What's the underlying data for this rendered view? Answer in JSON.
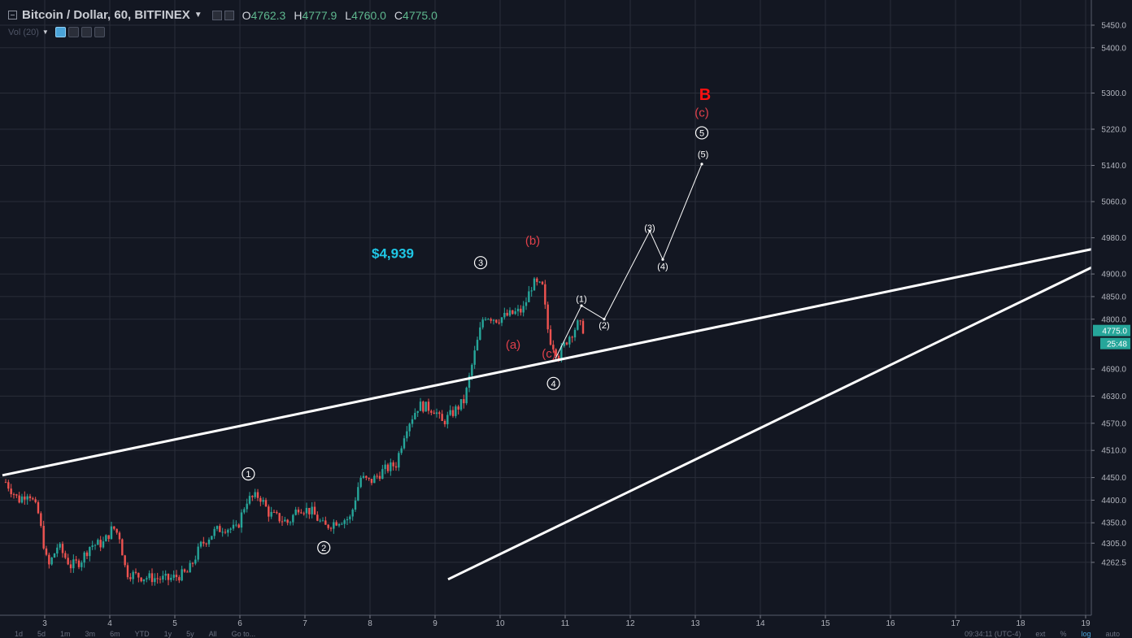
{
  "header": {
    "symbol": "Bitcoin / Dollar, 60, BITFINEX",
    "open_label": "O",
    "open_value": "4762.3",
    "high_label": "H",
    "high_value": "4777.9",
    "low_label": "L",
    "low_value": "4760.0",
    "close_label": "C",
    "close_value": "4775.0",
    "vol_label": "Vol (20)"
  },
  "price_axis": {
    "ticks": [
      5450.0,
      5400.0,
      5300.0,
      5220.0,
      5140.0,
      5060.0,
      4980.0,
      4900.0,
      4850.0,
      4800.0,
      4690.0,
      4630.0,
      4570.0,
      4510.0,
      4450.0,
      4400.0,
      4350.0,
      4305.0,
      4262.5
    ],
    "tick_labels": [
      "5450.0",
      "5400.0",
      "5300.0",
      "5220.0",
      "5140.0",
      "5060.0",
      "4980.0",
      "4900.0",
      "4850.0",
      "4800.0",
      "4690.0",
      "4630.0",
      "4570.0",
      "4510.0",
      "4450.0",
      "4400.0",
      "4350.0",
      "4305.0",
      "4262.5"
    ],
    "last_price": "4775.0",
    "countdown": "25:48"
  },
  "time_axis": {
    "ticks": [
      3,
      4,
      5,
      6,
      7,
      8,
      9,
      10,
      11,
      12,
      13,
      14,
      15,
      16,
      17,
      18,
      19
    ],
    "tick_labels": [
      "3",
      "4",
      "5",
      "6",
      "7",
      "8",
      "9",
      "10",
      "11",
      "12",
      "13",
      "14",
      "15",
      "16",
      "17",
      "18",
      "19"
    ]
  },
  "bottom_toolbar": {
    "ranges": [
      "1d",
      "5d",
      "1m",
      "3m",
      "6m",
      "YTD",
      "1y",
      "5y",
      "All",
      "Go to..."
    ],
    "clock": "09:34:11 (UTC-4)",
    "right_items": [
      "ext",
      "%",
      "log",
      "auto"
    ]
  },
  "chart_data": {
    "type": "candlestick",
    "x_unit": "day of month",
    "y_unit": "USD",
    "ylim": [
      4230,
      5470
    ],
    "xlim": [
      2.35,
      19.1
    ],
    "price_path": [
      [
        2.4,
        4440
      ],
      [
        2.6,
        4400
      ],
      [
        2.75,
        4420
      ],
      [
        2.9,
        4370
      ],
      [
        3.05,
        4250
      ],
      [
        3.2,
        4300
      ],
      [
        3.4,
        4255
      ],
      [
        3.55,
        4265
      ],
      [
        3.7,
        4300
      ],
      [
        3.9,
        4305
      ],
      [
        4.05,
        4340
      ],
      [
        4.15,
        4320
      ],
      [
        4.25,
        4240
      ],
      [
        4.5,
        4230
      ],
      [
        4.9,
        4225
      ],
      [
        5.2,
        4240
      ],
      [
        5.4,
        4300
      ],
      [
        5.6,
        4330
      ],
      [
        5.75,
        4340
      ],
      [
        5.95,
        4335
      ],
      [
        6.1,
        4400
      ],
      [
        6.3,
        4410
      ],
      [
        6.45,
        4370
      ],
      [
        6.6,
        4360
      ],
      [
        6.75,
        4350
      ],
      [
        6.9,
        4385
      ],
      [
        7.1,
        4375
      ],
      [
        7.3,
        4340
      ],
      [
        7.5,
        4355
      ],
      [
        7.7,
        4360
      ],
      [
        7.85,
        4450
      ],
      [
        8.0,
        4440
      ],
      [
        8.2,
        4465
      ],
      [
        8.4,
        4480
      ],
      [
        8.55,
        4560
      ],
      [
        8.75,
        4610
      ],
      [
        9.0,
        4600
      ],
      [
        9.1,
        4570
      ],
      [
        9.25,
        4590
      ],
      [
        9.45,
        4620
      ],
      [
        9.6,
        4720
      ],
      [
        9.75,
        4810
      ],
      [
        9.95,
        4800
      ],
      [
        10.15,
        4810
      ],
      [
        10.35,
        4820
      ],
      [
        10.5,
        4880
      ],
      [
        10.65,
        4870
      ],
      [
        10.75,
        4760
      ],
      [
        10.9,
        4720
      ],
      [
        11.05,
        4760
      ],
      [
        11.2,
        4790
      ],
      [
        11.3,
        4775
      ]
    ],
    "wave_labels": [
      {
        "text": "1",
        "x": 6.13,
        "y": 4458,
        "circled": true,
        "color": "#ffffff"
      },
      {
        "text": "2",
        "x": 7.29,
        "y": 4295,
        "circled": true,
        "color": "#ffffff"
      },
      {
        "text": "3",
        "x": 9.7,
        "y": 4925,
        "circled": true,
        "color": "#ffffff"
      },
      {
        "text": "4",
        "x": 10.82,
        "y": 4658,
        "circled": true,
        "color": "#ffffff"
      },
      {
        "text": "5",
        "x": 13.1,
        "y": 5212,
        "circled": true,
        "color": "#ffffff"
      },
      {
        "text": "(a)",
        "x": 10.2,
        "y": 4735,
        "circled": false,
        "color": "#e0404a"
      },
      {
        "text": "(b)",
        "x": 10.5,
        "y": 4965,
        "circled": false,
        "color": "#e0404a"
      },
      {
        "text": "(c)",
        "x": 10.75,
        "y": 4715,
        "circled": false,
        "color": "#e0404a"
      },
      {
        "text": "(c)",
        "x": 13.1,
        "y": 5248,
        "circled": false,
        "color": "#e0404a"
      },
      {
        "text": "B",
        "x": 13.15,
        "y": 5285,
        "circled": false,
        "color": "#ff1010"
      },
      {
        "text": "(1)",
        "x": 11.25,
        "y": 4838,
        "circled": false,
        "color": "#ffffff"
      },
      {
        "text": "(2)",
        "x": 11.6,
        "y": 4780,
        "circled": false,
        "color": "#ffffff"
      },
      {
        "text": "(3)",
        "x": 12.3,
        "y": 4995,
        "circled": false,
        "color": "#ffffff"
      },
      {
        "text": "(4)",
        "x": 12.5,
        "y": 4910,
        "circled": false,
        "color": "#ffffff"
      },
      {
        "text": "(5)",
        "x": 13.12,
        "y": 5158,
        "circled": false,
        "color": "#ffffff"
      }
    ],
    "annotation": {
      "text": "$4,939",
      "x": 8.35,
      "y": 4935,
      "color": "#1fc7e6"
    },
    "projection_path": [
      [
        10.85,
        4713
      ],
      [
        11.25,
        4830
      ],
      [
        11.6,
        4800
      ],
      [
        12.3,
        4995
      ],
      [
        12.5,
        4932
      ],
      [
        13.1,
        5143
      ]
    ],
    "trendlines": [
      {
        "from": [
          2.35,
          4455
        ],
        "to": [
          19.1,
          4955
        ]
      },
      {
        "from": [
          9.2,
          4225
        ],
        "to": [
          19.1,
          4915
        ]
      }
    ],
    "colors": {
      "up": "#26a69a",
      "down": "#ef5350",
      "background": "#131722",
      "grid": "#2a2e39",
      "line": "#ffffff"
    }
  }
}
